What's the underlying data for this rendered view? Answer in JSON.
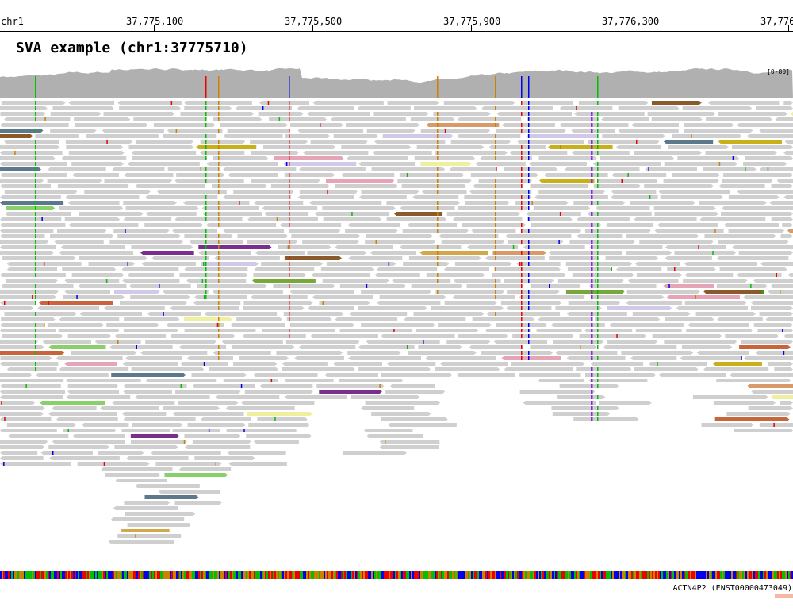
{
  "ruler": {
    "chrom_label": "chr1",
    "ticks": [
      "37,775,100",
      "37,775,500",
      "37,775,900",
      "37,776,300",
      "37,776"
    ]
  },
  "title": "SVA example (chr1:37775710)",
  "coverage": {
    "range_label": "[0-80]",
    "color": "#b0b0b0"
  },
  "gene": {
    "label": "ACTN4P2 (ENST00000473049)",
    "color": "#f6b8a4"
  },
  "colors": {
    "read": "#cfcfcf",
    "read_dark": "#bdbdbd",
    "mismatch_A": "#00c000",
    "mismatch_C": "#0000ee",
    "mismatch_G": "#d08000",
    "mismatch_T": "#ee0000",
    "insertion": "#8a2be2",
    "discordant": [
      "#7b2f8c",
      "#c8653a",
      "#5a7a8c",
      "#d4a84a",
      "#88d06a",
      "#c9b019",
      "#8b5a2b",
      "#79a83a",
      "#e7a4b6",
      "#d89a68",
      "#d2c8e8",
      "#eef0a0"
    ]
  },
  "sequence_palette": [
    "#00c000",
    "#0000ee",
    "#d08000",
    "#ee0000"
  ]
}
